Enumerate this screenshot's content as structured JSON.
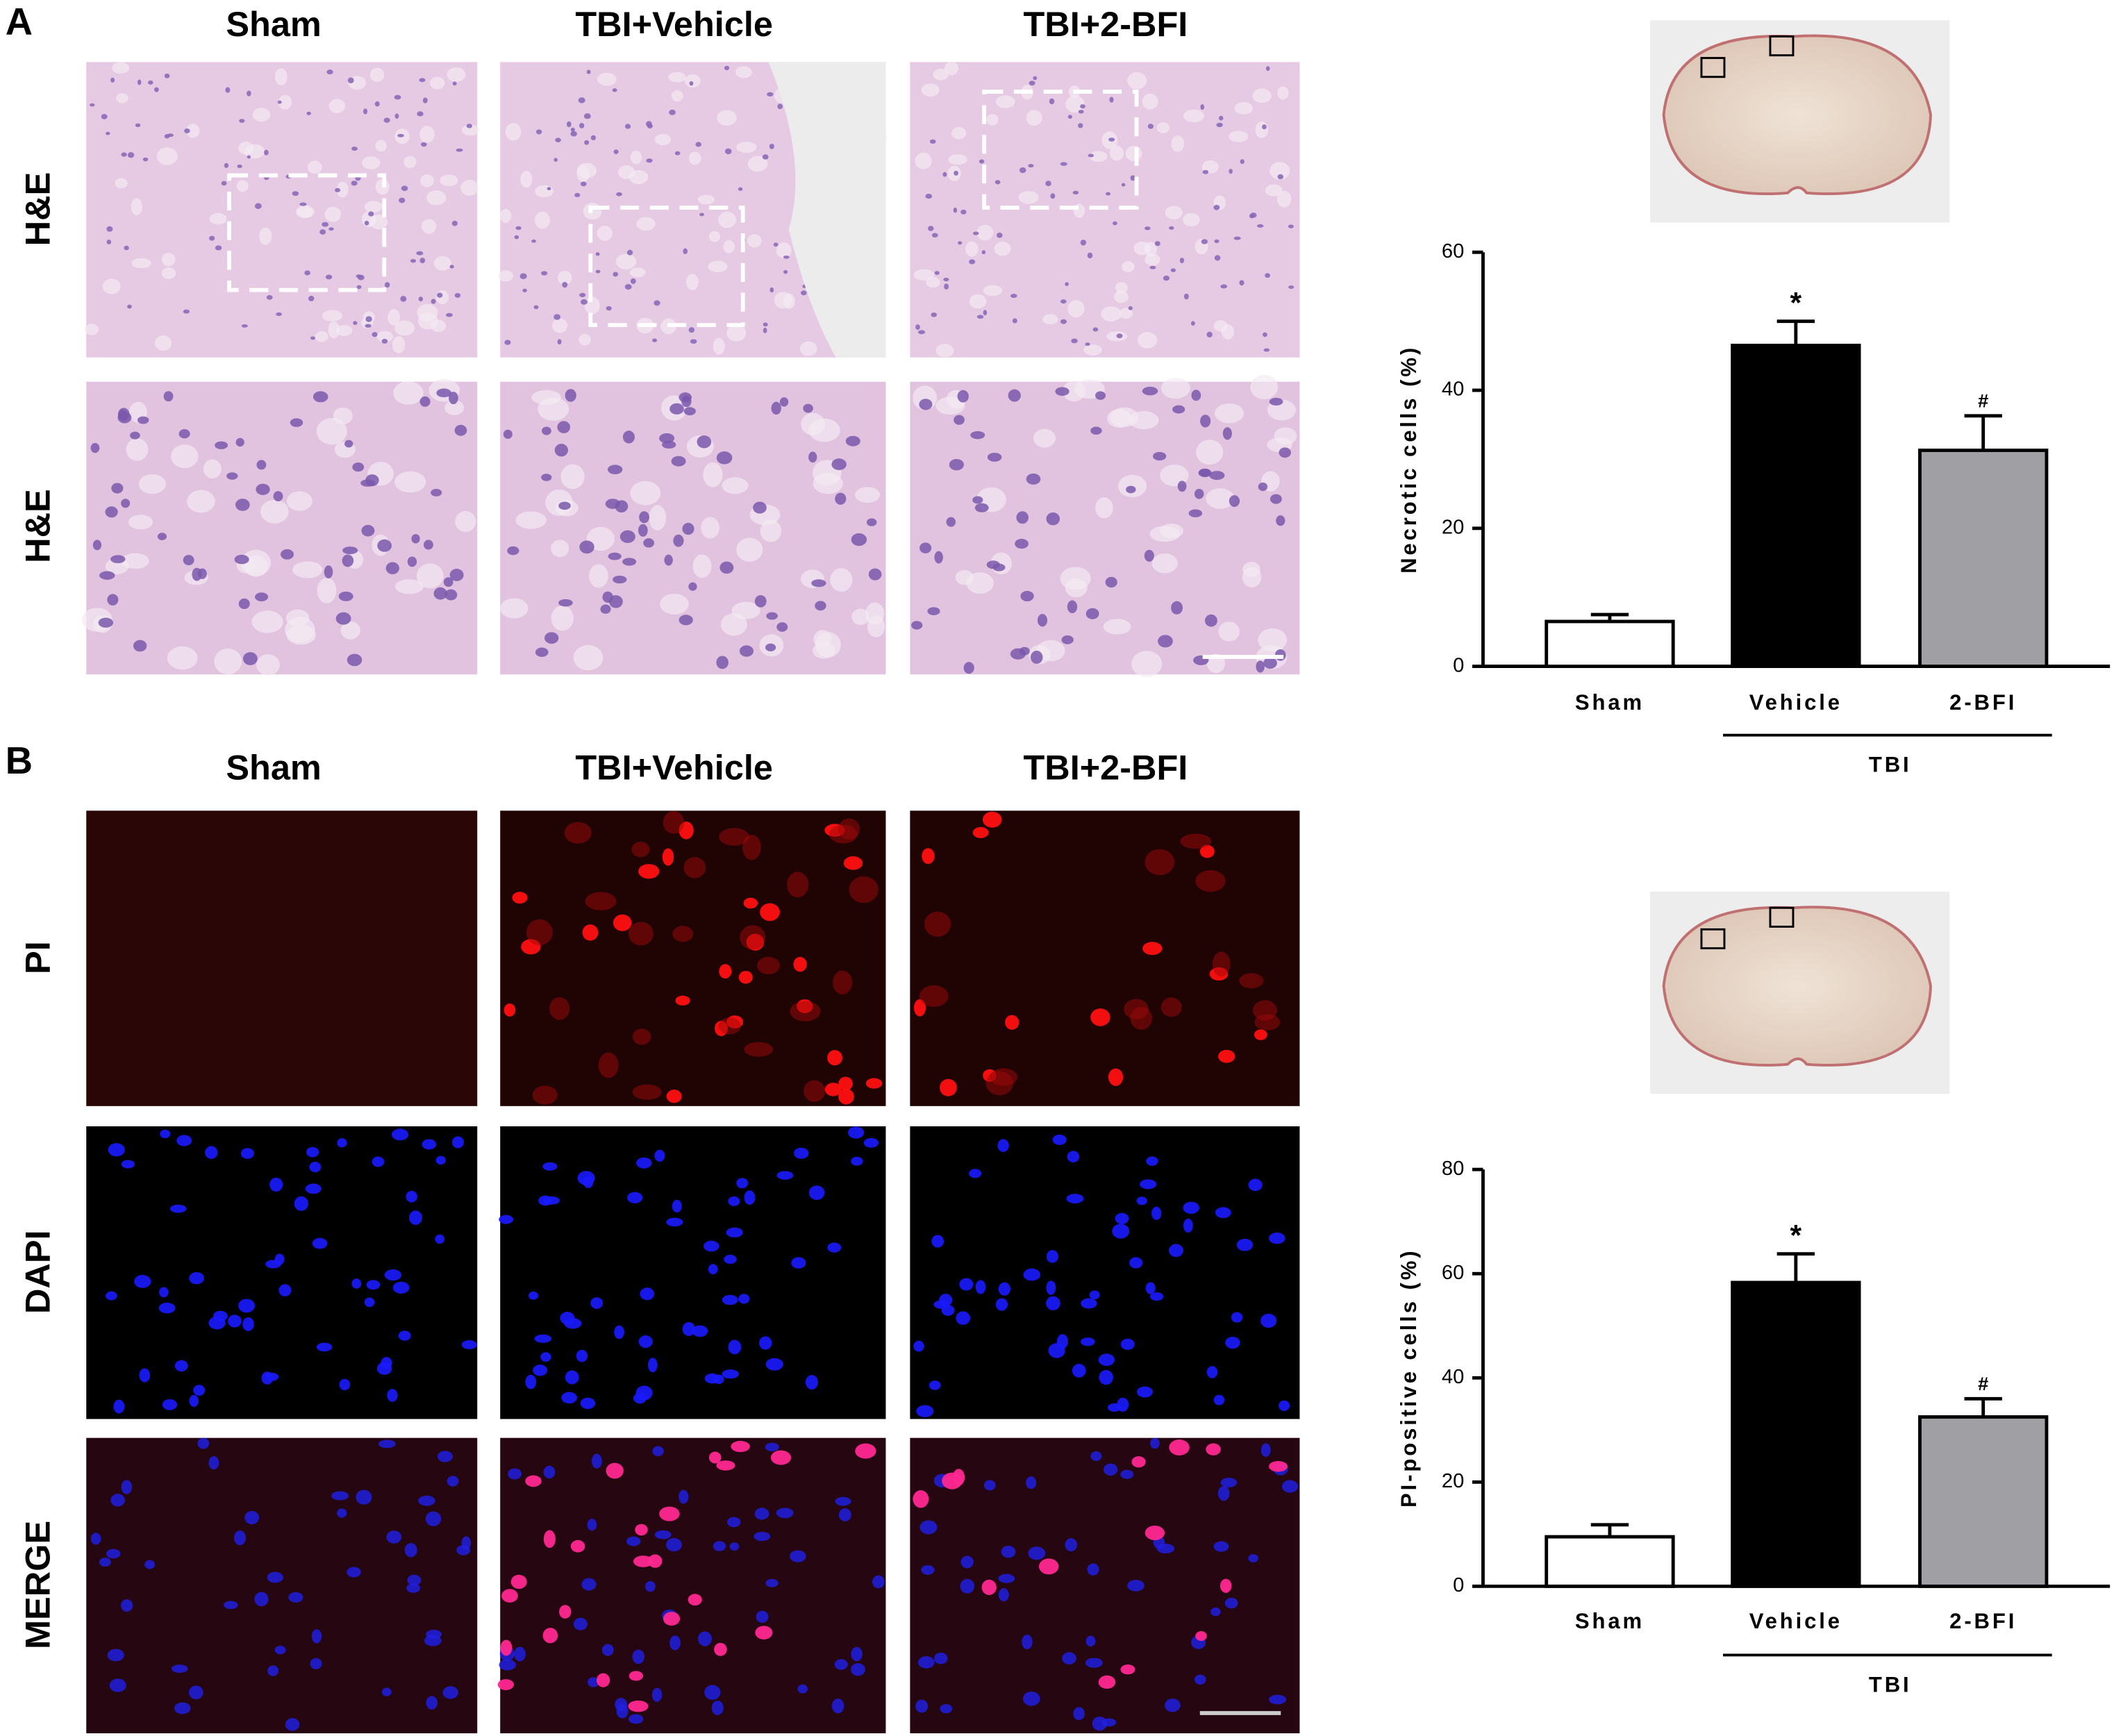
{
  "figure": {
    "panel_labels": [
      "A",
      "B"
    ],
    "panel_a": {
      "columns": [
        "Sham",
        "TBI+Vehicle",
        "TBI+2-BFI"
      ],
      "rows": [
        "H&E",
        "H&E"
      ]
    },
    "panel_b": {
      "columns": [
        "Sham",
        "TBI+Vehicle",
        "TBI+2-BFI"
      ],
      "rows": [
        "PI",
        "DAPI",
        "MERGE"
      ]
    }
  },
  "chart_data": [
    {
      "type": "bar",
      "y_label": "Necrotic cells (%)",
      "categories": [
        "Sham",
        "Vehicle",
        "2-BFI"
      ],
      "values": [
        6.5,
        46.5,
        31.3
      ],
      "errors": [
        1,
        3.5,
        5
      ],
      "colors": [
        "#ffffff",
        "#000000",
        "#a0a0a4"
      ],
      "group_label": "TBI",
      "ylim": [
        0,
        60
      ],
      "yticks": [
        0,
        20,
        40,
        60
      ],
      "annotations": [
        {
          "label": "*",
          "x": "Vehicle"
        },
        {
          "label": "#",
          "x": "2-BFI"
        }
      ]
    },
    {
      "type": "bar",
      "y_label": "PI-positive cells (%)",
      "categories": [
        "Sham",
        "Vehicle",
        "2-BFI"
      ],
      "values": [
        9.5,
        58.3,
        32.5
      ],
      "errors": [
        2.3,
        5.5,
        3.5
      ],
      "colors": [
        "#ffffff",
        "#000000",
        "#a0a0a4"
      ],
      "group_label": "TBI",
      "ylim": [
        0,
        80
      ],
      "yticks": [
        0,
        20,
        40,
        60,
        80
      ],
      "annotations": [
        {
          "label": "*",
          "x": "Vehicle"
        },
        {
          "label": "#",
          "x": "2-BFI"
        }
      ]
    }
  ]
}
